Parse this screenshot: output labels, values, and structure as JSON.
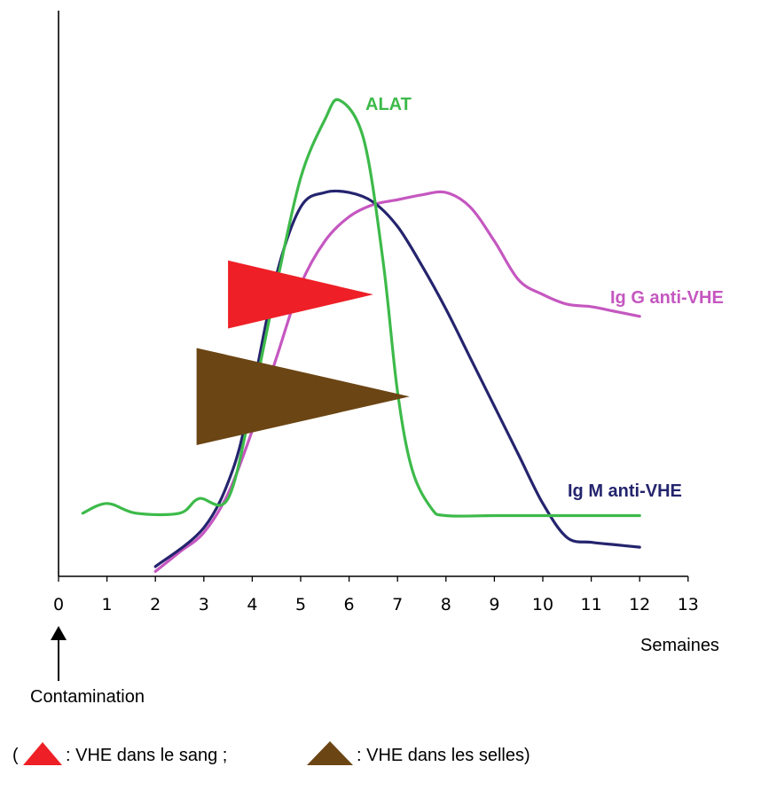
{
  "chart_data": {
    "type": "line",
    "xlabel": "Semaines",
    "x_ticks": [
      0,
      1,
      2,
      3,
      4,
      5,
      6,
      7,
      8,
      9,
      10,
      11,
      12,
      13
    ],
    "xlim": [
      0,
      13
    ],
    "ylabel": "",
    "grid": false,
    "y_ticks_shown": false,
    "x_annotation": {
      "label": "Contamination",
      "x": 0
    },
    "series": [
      {
        "name": "ALAT",
        "color": "#3dba4a",
        "points": [
          [
            0.5,
            0.13
          ],
          [
            1,
            0.15
          ],
          [
            1.6,
            0.13
          ],
          [
            2.5,
            0.13
          ],
          [
            2.9,
            0.16
          ],
          [
            3.5,
            0.16
          ],
          [
            4,
            0.36
          ],
          [
            4.5,
            0.6
          ],
          [
            5,
            0.82
          ],
          [
            5.5,
            0.94
          ],
          [
            5.8,
            0.98
          ],
          [
            6.3,
            0.9
          ],
          [
            6.7,
            0.65
          ],
          [
            7,
            0.38
          ],
          [
            7.3,
            0.22
          ],
          [
            7.7,
            0.14
          ],
          [
            8,
            0.125
          ],
          [
            9,
            0.125
          ],
          [
            10,
            0.125
          ],
          [
            11,
            0.125
          ],
          [
            12,
            0.125
          ]
        ]
      },
      {
        "name": "Ig M anti-VHE",
        "color": "#24246e",
        "points": [
          [
            2,
            0.02
          ],
          [
            3,
            0.1
          ],
          [
            3.6,
            0.22
          ],
          [
            4,
            0.38
          ],
          [
            4.5,
            0.62
          ],
          [
            5,
            0.76
          ],
          [
            5.5,
            0.79
          ],
          [
            6,
            0.79
          ],
          [
            6.5,
            0.77
          ],
          [
            7,
            0.72
          ],
          [
            7.5,
            0.64
          ],
          [
            8,
            0.55
          ],
          [
            8.5,
            0.45
          ],
          [
            9,
            0.35
          ],
          [
            9.5,
            0.25
          ],
          [
            10,
            0.15
          ],
          [
            10.5,
            0.08
          ],
          [
            11,
            0.07
          ],
          [
            11.5,
            0.065
          ],
          [
            12,
            0.06
          ]
        ]
      },
      {
        "name": "Ig G anti-VHE",
        "color": "#c557c0",
        "points": [
          [
            2,
            0.01
          ],
          [
            2.5,
            0.05
          ],
          [
            3,
            0.09
          ],
          [
            3.5,
            0.17
          ],
          [
            4,
            0.3
          ],
          [
            4.5,
            0.45
          ],
          [
            5,
            0.6
          ],
          [
            5.5,
            0.69
          ],
          [
            6,
            0.74
          ],
          [
            6.5,
            0.765
          ],
          [
            7,
            0.775
          ],
          [
            7.5,
            0.785
          ],
          [
            8,
            0.79
          ],
          [
            8.5,
            0.76
          ],
          [
            9,
            0.69
          ],
          [
            9.5,
            0.61
          ],
          [
            10,
            0.58
          ],
          [
            10.5,
            0.56
          ],
          [
            11,
            0.555
          ],
          [
            11.5,
            0.545
          ],
          [
            12,
            0.535
          ]
        ]
      }
    ],
    "markers": [
      {
        "name": "VHE dans le sang",
        "color": "#ee1f26",
        "x_start": 3.5,
        "x_end": 6.5,
        "y_center": 0.58,
        "height": 0.14
      },
      {
        "name": "VHE dans les selles",
        "color": "#6b4514",
        "x_start": 2.85,
        "x_end": 7.25,
        "y_center": 0.37,
        "height": 0.2
      }
    ],
    "legend": {
      "open": "(",
      "items": [
        {
          "text": ": VHE dans le sang ;",
          "color": "#ee1f26"
        },
        {
          "text": ": VHE dans les selles)",
          "color": "#6b4514"
        }
      ]
    }
  }
}
